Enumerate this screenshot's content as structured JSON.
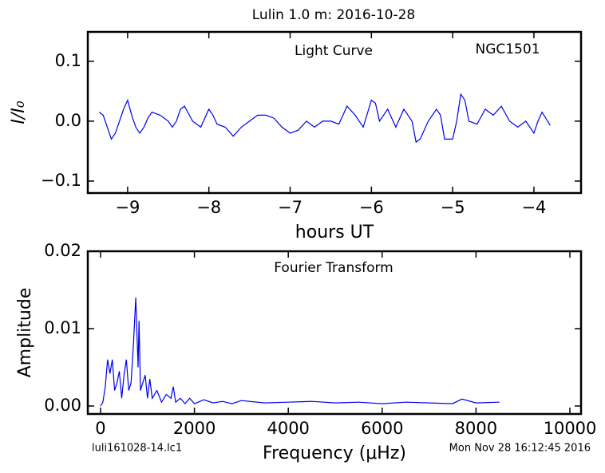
{
  "title": "Lulin 1.0 m:  2016-10-28",
  "footer_left": "luli161028-14.lc1",
  "footer_right": "Mon Nov 28 16:12:45 2016",
  "chart_data": [
    {
      "type": "line",
      "title": "Light Curve",
      "annotation": "NGC1501",
      "xlabel": "hours UT",
      "ylabel": "I/I₀",
      "color": "#0000ee",
      "xlim": [
        -9.49,
        -3.42
      ],
      "ylim": [
        -0.12,
        0.149
      ],
      "xticks": [
        {
          "value": -9,
          "label": "−9"
        },
        {
          "value": -8,
          "label": "−8"
        },
        {
          "value": -7,
          "label": "−7"
        },
        {
          "value": -6,
          "label": "−6"
        },
        {
          "value": -5,
          "label": "−5"
        },
        {
          "value": -4,
          "label": "−4"
        }
      ],
      "yticks": [
        {
          "value": -0.1,
          "label": "−0.1"
        },
        {
          "value": 0,
          "label": "0.0"
        },
        0.1
      ],
      "x": [
        -9.35,
        -9.3,
        -9.25,
        -9.2,
        -9.15,
        -9.1,
        -9.05,
        -9.0,
        -8.95,
        -8.9,
        -8.85,
        -8.8,
        -8.75,
        -8.7,
        -8.6,
        -8.5,
        -8.45,
        -8.4,
        -8.35,
        -8.3,
        -8.2,
        -8.1,
        -8.0,
        -7.95,
        -7.9,
        -7.8,
        -7.7,
        -7.6,
        -7.5,
        -7.4,
        -7.3,
        -7.2,
        -7.1,
        -7.0,
        -6.9,
        -6.8,
        -6.7,
        -6.6,
        -6.5,
        -6.4,
        -6.3,
        -6.2,
        -6.1,
        -6.0,
        -5.95,
        -5.9,
        -5.8,
        -5.7,
        -5.6,
        -5.5,
        -5.45,
        -5.4,
        -5.3,
        -5.2,
        -5.15,
        -5.1,
        -5.0,
        -4.95,
        -4.9,
        -4.85,
        -4.8,
        -4.7,
        -4.6,
        -4.5,
        -4.4,
        -4.3,
        -4.2,
        -4.1,
        -4.0,
        -3.95,
        -3.9,
        -3.8
      ],
      "values": [
        0.015,
        0.01,
        -0.01,
        -0.03,
        -0.02,
        0.0,
        0.02,
        0.035,
        0.01,
        -0.01,
        -0.02,
        -0.01,
        0.005,
        0.015,
        0.01,
        0.0,
        -0.01,
        0.0,
        0.02,
        0.025,
        0.0,
        -0.01,
        0.02,
        0.01,
        -0.005,
        -0.01,
        -0.025,
        -0.01,
        0.0,
        0.01,
        0.01,
        0.005,
        -0.01,
        -0.02,
        -0.015,
        0.0,
        -0.01,
        0.0,
        0.0,
        -0.005,
        0.025,
        0.01,
        -0.01,
        0.035,
        0.03,
        0.0,
        0.02,
        -0.01,
        0.02,
        0.0,
        -0.035,
        -0.03,
        0.0,
        0.02,
        0.01,
        -0.03,
        -0.03,
        0.0,
        0.045,
        0.035,
        0.0,
        -0.005,
        0.02,
        0.01,
        0.025,
        0.0,
        -0.01,
        0.0,
        -0.02,
        0.0,
        0.015,
        -0.007
      ]
    },
    {
      "type": "line",
      "title": "Fourier Transform",
      "xlabel": "Frequency (μHz)",
      "ylabel": "Amplitude",
      "color": "#0000ee",
      "xlim": [
        -272,
        10238
      ],
      "ylim": [
        -0.00103,
        0.02
      ],
      "xticks": [
        0,
        2000,
        4000,
        6000,
        8000,
        10000
      ],
      "yticks": [
        {
          "value": 0,
          "label": "0.00"
        },
        {
          "value": 0.01,
          "label": "0.01"
        },
        {
          "value": 0.02,
          "label": "0.02"
        }
      ],
      "x": [
        0,
        50,
        100,
        150,
        200,
        250,
        300,
        350,
        400,
        450,
        500,
        550,
        600,
        650,
        700,
        750,
        800,
        820,
        850,
        900,
        950,
        1000,
        1050,
        1100,
        1200,
        1300,
        1400,
        1500,
        1550,
        1600,
        1700,
        1800,
        1900,
        2000,
        2200,
        2400,
        2600,
        2800,
        3000,
        3500,
        4000,
        4500,
        5000,
        5500,
        6000,
        6500,
        7000,
        7500,
        7700,
        8000,
        8500
      ],
      "values": [
        0.0,
        0.0005,
        0.0025,
        0.006,
        0.0042,
        0.006,
        0.002,
        0.003,
        0.0045,
        0.001,
        0.004,
        0.006,
        0.002,
        0.003,
        0.008,
        0.014,
        0.005,
        0.011,
        0.002,
        0.003,
        0.004,
        0.001,
        0.0035,
        0.001,
        0.002,
        0.0005,
        0.0015,
        0.001,
        0.0025,
        0.0005,
        0.001,
        0.0003,
        0.001,
        0.0003,
        0.0008,
        0.0004,
        0.0006,
        0.0003,
        0.0007,
        0.0004,
        0.0005,
        0.0006,
        0.0004,
        0.0005,
        0.0003,
        0.0005,
        0.0004,
        0.0003,
        0.0009,
        0.0004,
        0.0005
      ]
    }
  ]
}
